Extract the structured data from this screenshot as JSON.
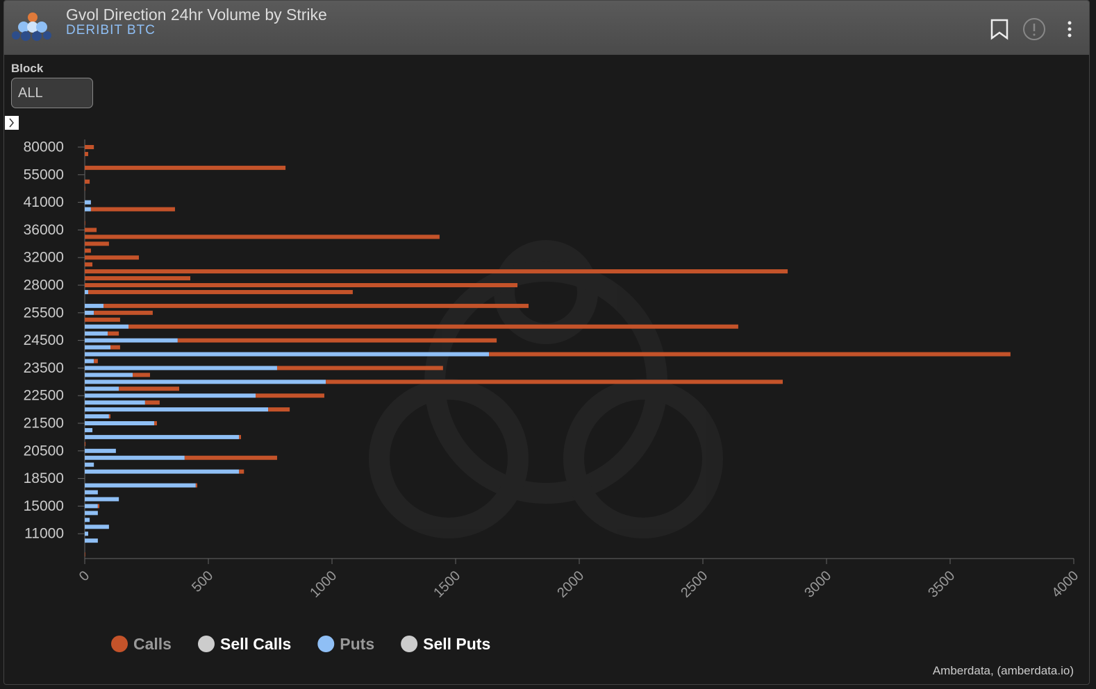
{
  "header": {
    "title": "Gvol Direction 24hr Volume by Strike",
    "subtitle": "DERIBIT BTC"
  },
  "filter": {
    "label": "Block",
    "value": "ALL"
  },
  "footer": "Amberdata, (amberdata.io)",
  "chart_data": {
    "type": "bar",
    "orientation": "horizontal",
    "stacked": true,
    "categories": [
      80000,
      null,
      null,
      null,
      55000,
      null,
      null,
      null,
      41000,
      null,
      null,
      null,
      36000,
      null,
      null,
      null,
      32000,
      null,
      null,
      null,
      28000,
      null,
      null,
      null,
      25500,
      null,
      null,
      null,
      24500,
      null,
      null,
      null,
      23500,
      null,
      null,
      null,
      22500,
      null,
      null,
      null,
      21500,
      null,
      null,
      null,
      20500,
      null,
      null,
      null,
      18500,
      null,
      null,
      null,
      15000,
      null,
      null,
      null,
      11000,
      null,
      null,
      null
    ],
    "series": [
      {
        "name": "Puts",
        "color": "#8fbff5",
        "values": [
          0,
          0,
          0,
          0,
          0,
          0,
          0,
          0,
          25,
          25,
          0,
          0,
          0,
          0,
          0,
          0,
          0,
          0,
          0,
          0,
          0,
          14,
          0,
          76,
          37,
          0,
          177,
          93,
          376,
          104,
          1635,
          37,
          778,
          194,
          975,
          138,
          691,
          244,
          742,
          98,
          281,
          31,
          624,
          0,
          126,
          404,
          37,
          624,
          0,
          449,
          53,
          138,
          53,
          53,
          20,
          98,
          14,
          53,
          0,
          0
        ]
      },
      {
        "name": "Calls",
        "color": "#c4532a",
        "values": [
          37,
          14,
          0,
          812,
          0,
          20,
          2,
          0,
          0,
          340,
          0,
          2,
          48,
          1435,
          98,
          25,
          219,
          31,
          2843,
          427,
          1750,
          1070,
          0,
          1719,
          238,
          143,
          2466,
          45,
          1290,
          39,
          2109,
          16,
          671,
          70,
          1848,
          244,
          278,
          59,
          87,
          6,
          11,
          0,
          8,
          3,
          0,
          374,
          0,
          20,
          0,
          6,
          0,
          0,
          6,
          0,
          0,
          0,
          0,
          0,
          0,
          2
        ]
      }
    ],
    "extra_legend": [
      {
        "name": "Sell Calls",
        "color": "#cccccc"
      },
      {
        "name": "Sell Puts",
        "color": "#cccccc"
      }
    ],
    "xlim": [
      0,
      4000
    ],
    "xticks": [
      0,
      500,
      1000,
      1500,
      2000,
      2500,
      3000,
      3500,
      4000
    ]
  }
}
